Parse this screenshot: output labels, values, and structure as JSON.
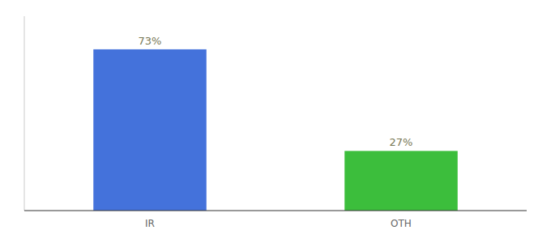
{
  "chart_data": {
    "type": "bar",
    "categories": [
      "IR",
      "OTH"
    ],
    "values": [
      73,
      27
    ],
    "value_labels": [
      "73%",
      "27%"
    ],
    "colors": [
      "#4472db",
      "#3cbe3c"
    ],
    "ylim": [
      0,
      88
    ],
    "data_labels": true,
    "tick_labels": "x"
  }
}
